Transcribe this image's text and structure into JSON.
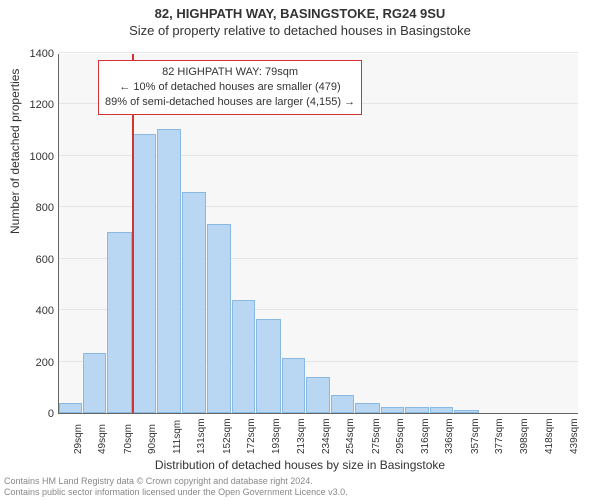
{
  "title": {
    "line1": "82, HIGHPATH WAY, BASINGSTOKE, RG24 9SU",
    "line2": "Size of property relative to detached houses in Basingstoke",
    "fontsize": 13,
    "color": "#333333"
  },
  "chart": {
    "type": "histogram",
    "background_color": "#f7f7f7",
    "grid_color": "#e5e5e5",
    "axis_color": "#666666",
    "bar_fill": "#b9d6f2",
    "bar_border": "#89b8e0",
    "marker_color": "#d33333",
    "marker_value": 79,
    "xlim": [
      19,
      449
    ],
    "ylim": [
      0,
      1400
    ],
    "ytick_step": 200,
    "x_ticks": [
      29,
      49,
      70,
      90,
      111,
      131,
      152,
      172,
      193,
      213,
      234,
      254,
      275,
      295,
      316,
      336,
      357,
      377,
      398,
      418,
      439
    ],
    "x_tick_suffix": "sqm",
    "xlabel": "Distribution of detached houses by size in Basingstoke",
    "ylabel": "Number of detached properties",
    "label_fontsize": 12,
    "tick_fontsize": 11,
    "bars": [
      {
        "x0": 19,
        "x1": 39,
        "y": 40
      },
      {
        "x0": 39,
        "x1": 59,
        "y": 235
      },
      {
        "x0": 59,
        "x1": 80,
        "y": 705
      },
      {
        "x0": 80,
        "x1": 100,
        "y": 1085
      },
      {
        "x0": 100,
        "x1": 121,
        "y": 1105
      },
      {
        "x0": 121,
        "x1": 141,
        "y": 860
      },
      {
        "x0": 141,
        "x1": 162,
        "y": 735
      },
      {
        "x0": 162,
        "x1": 182,
        "y": 440
      },
      {
        "x0": 182,
        "x1": 203,
        "y": 365
      },
      {
        "x0": 203,
        "x1": 223,
        "y": 215
      },
      {
        "x0": 223,
        "x1": 244,
        "y": 140
      },
      {
        "x0": 244,
        "x1": 264,
        "y": 70
      },
      {
        "x0": 264,
        "x1": 285,
        "y": 40
      },
      {
        "x0": 285,
        "x1": 305,
        "y": 25
      },
      {
        "x0": 305,
        "x1": 326,
        "y": 25
      },
      {
        "x0": 326,
        "x1": 346,
        "y": 25
      },
      {
        "x0": 346,
        "x1": 367,
        "y": 10
      }
    ]
  },
  "annotation": {
    "line1": "82 HIGHPATH WAY: 79sqm",
    "line2": "← 10% of detached houses are smaller (479)",
    "line3": "89% of semi-detached houses are larger (4,155) →",
    "border_color": "#d33333",
    "background_color": "#ffffff",
    "fontsize": 11
  },
  "footer": {
    "line1": "Contains HM Land Registry data © Crown copyright and database right 2024.",
    "line2": "Contains public sector information licensed under the Open Government Licence v3.0.",
    "color": "#888888",
    "fontsize": 9
  }
}
